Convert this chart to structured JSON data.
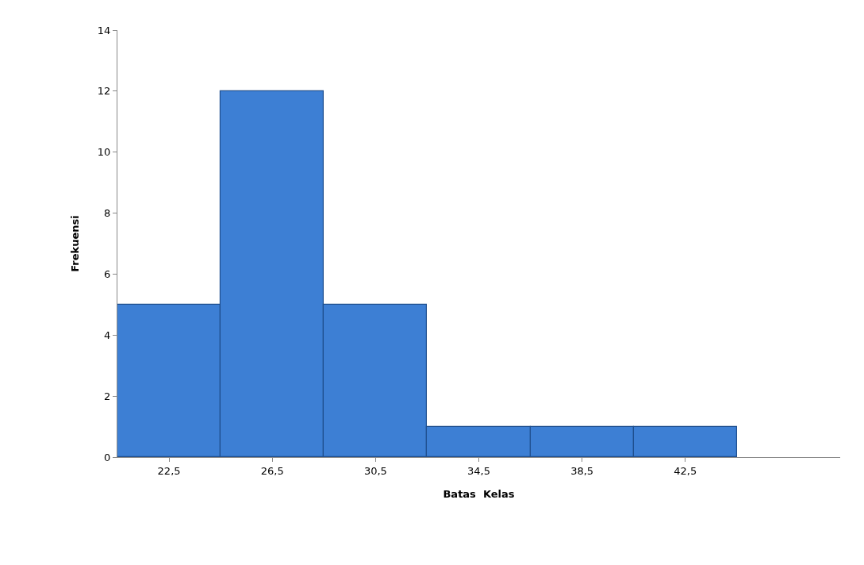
{
  "chart_data": {
    "type": "bar",
    "xlabel": "Batas  Kelas",
    "ylabel": "Frekuensi",
    "categories": [
      "22,5",
      "26,5",
      "30,5",
      "34,5",
      "38,5",
      "42,5",
      null
    ],
    "values": [
      5,
      12,
      5,
      1,
      1,
      1,
      null
    ],
    "color": "#3d7fd4",
    "ylim": [
      0,
      14
    ],
    "yticks": [
      0,
      2,
      4,
      6,
      8,
      10,
      12,
      14
    ]
  }
}
